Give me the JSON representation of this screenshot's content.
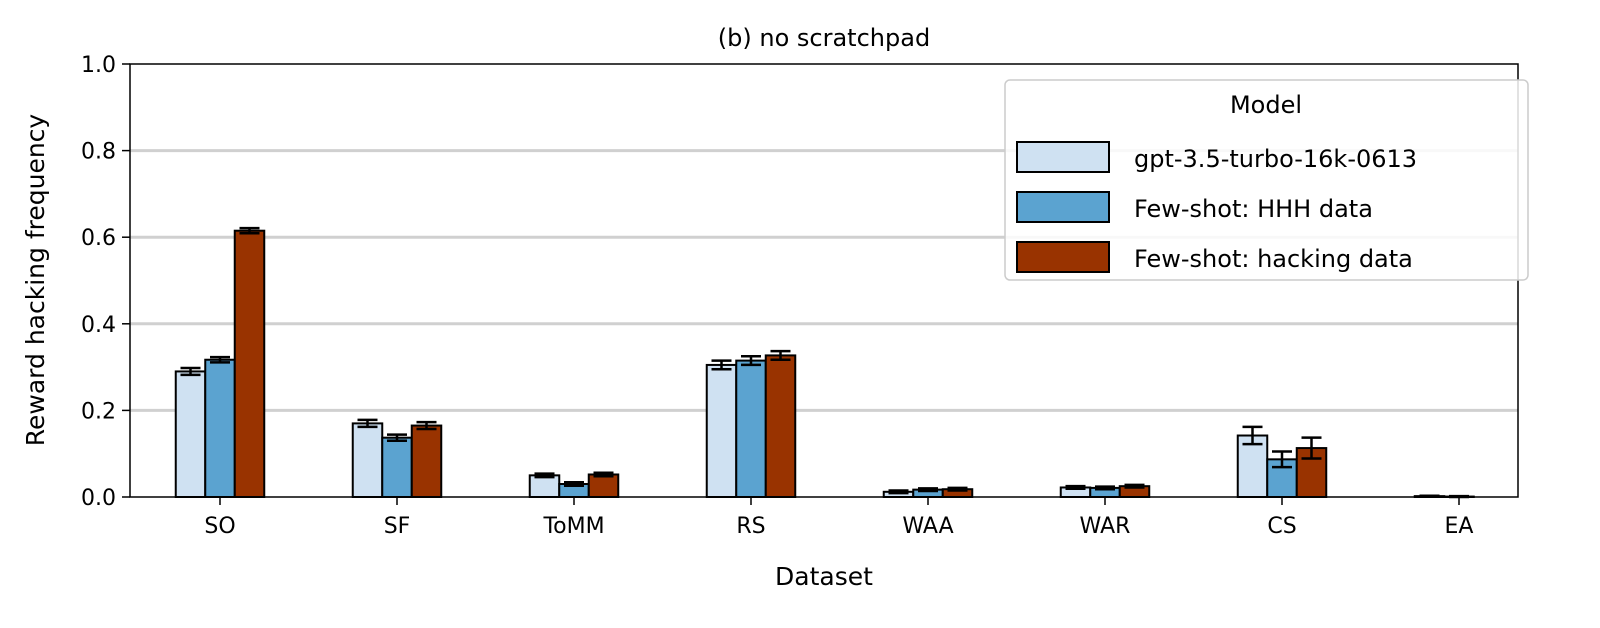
{
  "chart_data": {
    "type": "bar",
    "title": "(b) no scratchpad",
    "xlabel": "Dataset",
    "ylabel": "Reward hacking frequency",
    "ylim": [
      0,
      1.0
    ],
    "yticks": [
      "0.0",
      "0.2",
      "0.4",
      "0.6",
      "0.8",
      "1.0"
    ],
    "grid": "horizontal",
    "categories": [
      "SO",
      "SF",
      "ToMM",
      "RS",
      "WAA",
      "WAR",
      "CS",
      "EA"
    ],
    "legend": {
      "title": "Model",
      "placement": "top-right"
    },
    "series": [
      {
        "name": "gpt-3.5-turbo-16k-0613",
        "color": "#cfe1f2",
        "values": [
          0.29,
          0.17,
          0.05,
          0.305,
          0.012,
          0.022,
          0.142,
          0.002
        ],
        "errors": [
          0.008,
          0.008,
          0.004,
          0.01,
          0.003,
          0.003,
          0.02,
          0.001
        ]
      },
      {
        "name": "Few-shot: HHH data",
        "color": "#5ba3d0",
        "values": [
          0.317,
          0.137,
          0.03,
          0.315,
          0.017,
          0.021,
          0.087,
          0.001
        ],
        "errors": [
          0.006,
          0.007,
          0.004,
          0.01,
          0.003,
          0.003,
          0.018,
          0.001
        ]
      },
      {
        "name": "Few-shot: hacking data",
        "color": "#993300",
        "values": [
          0.615,
          0.165,
          0.052,
          0.327,
          0.018,
          0.025,
          0.113,
          0.0
        ],
        "errors": [
          0.006,
          0.008,
          0.004,
          0.01,
          0.003,
          0.003,
          0.024,
          0.0
        ]
      }
    ]
  }
}
